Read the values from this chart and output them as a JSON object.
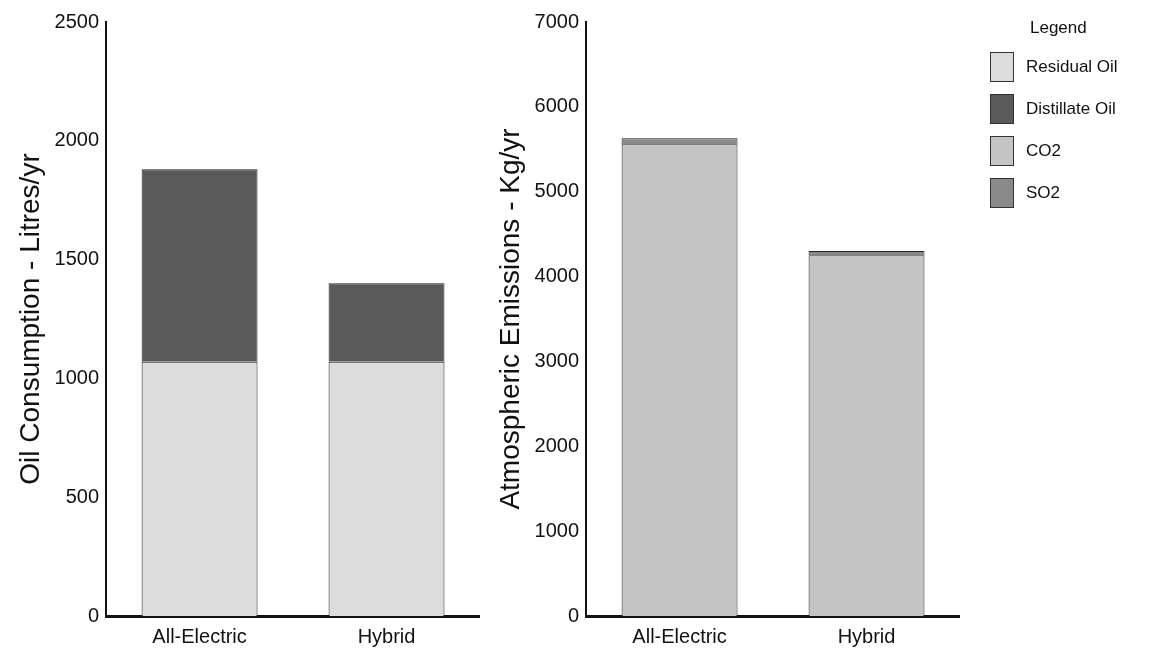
{
  "chart_data": [
    {
      "type": "bar",
      "ylabel": "Oil Consumption - Litres/yr",
      "categories": [
        "All-Electric",
        "Hybrid"
      ],
      "stacked": true,
      "legend": "right",
      "series": [
        {
          "name": "Residual Oil",
          "color": "#dcdcdc",
          "values": [
            1070,
            1070
          ]
        },
        {
          "name": "Distillate Oil",
          "color": "#5a5a5a",
          "values": [
            810,
            330
          ]
        }
      ],
      "ylim": [
        0,
        2500
      ],
      "yticks": [
        0,
        500,
        1000,
        1500,
        2000,
        2500
      ],
      "grid": false
    },
    {
      "type": "bar",
      "ylabel": "Atmospheric Emissions - Kg/yr",
      "categories": [
        "All-Electric",
        "Hybrid"
      ],
      "stacked": true,
      "legend": "right",
      "legend_title": "Legend",
      "series": [
        {
          "name": "CO2",
          "color": "#c4c4c4",
          "values": [
            5560,
            4250
          ]
        },
        {
          "name": "SO2",
          "color": "#8a8a8a",
          "values": [
            70,
            50
          ]
        }
      ],
      "ylim": [
        0,
        7000
      ],
      "yticks": [
        0,
        1000,
        2000,
        3000,
        4000,
        5000,
        6000,
        7000
      ],
      "grid": false
    }
  ]
}
